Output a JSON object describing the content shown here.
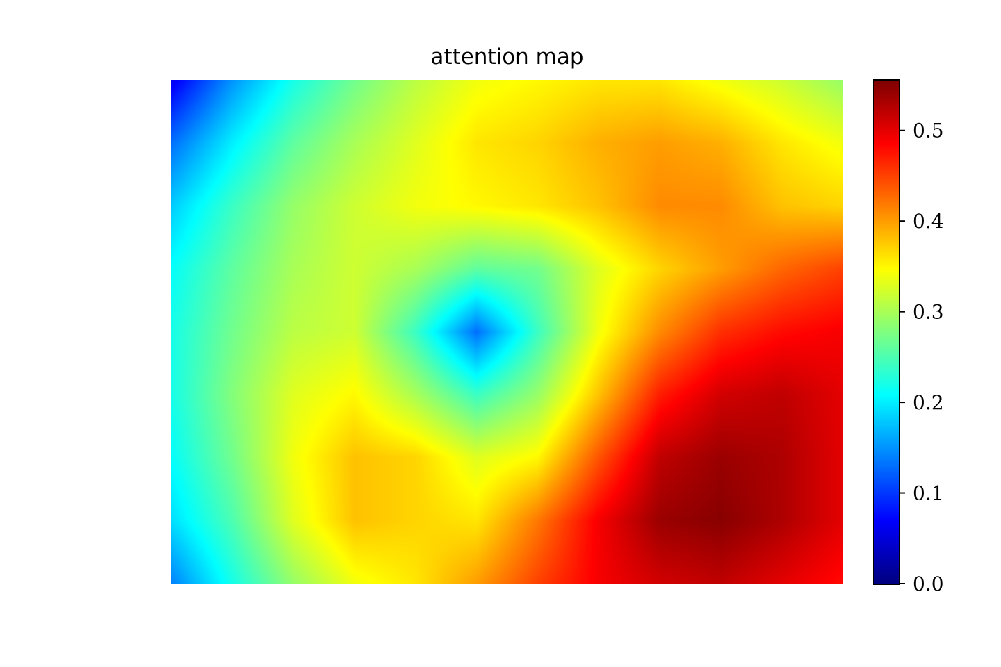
{
  "chart_data": {
    "type": "heatmap",
    "title": "attention map",
    "xlabel": "",
    "ylabel": "",
    "axes_visible": false,
    "colormap": "jet",
    "colorbar": {
      "vmin": 0.0,
      "vmax": 0.555,
      "ticks": [
        0.0,
        0.1,
        0.2,
        0.3,
        0.4,
        0.5
      ],
      "tick_labels": [
        "0.0",
        "0.1",
        "0.2",
        "0.3",
        "0.4",
        "0.5"
      ],
      "position": "right"
    },
    "grid_shape": [
      9,
      12
    ],
    "values": [
      [
        0.06,
        0.15,
        0.22,
        0.27,
        0.31,
        0.34,
        0.35,
        0.36,
        0.36,
        0.34,
        0.32,
        0.29
      ],
      [
        0.13,
        0.2,
        0.26,
        0.3,
        0.33,
        0.36,
        0.37,
        0.39,
        0.4,
        0.39,
        0.36,
        0.34
      ],
      [
        0.18,
        0.24,
        0.29,
        0.32,
        0.34,
        0.35,
        0.36,
        0.38,
        0.41,
        0.41,
        0.38,
        0.37
      ],
      [
        0.21,
        0.26,
        0.3,
        0.32,
        0.3,
        0.26,
        0.27,
        0.33,
        0.37,
        0.4,
        0.43,
        0.45
      ],
      [
        0.22,
        0.27,
        0.31,
        0.32,
        0.24,
        0.13,
        0.24,
        0.34,
        0.41,
        0.46,
        0.48,
        0.49
      ],
      [
        0.22,
        0.28,
        0.33,
        0.35,
        0.3,
        0.24,
        0.29,
        0.38,
        0.47,
        0.51,
        0.52,
        0.5
      ],
      [
        0.21,
        0.27,
        0.34,
        0.38,
        0.37,
        0.33,
        0.35,
        0.44,
        0.52,
        0.54,
        0.53,
        0.5
      ],
      [
        0.19,
        0.25,
        0.33,
        0.38,
        0.37,
        0.36,
        0.42,
        0.49,
        0.54,
        0.55,
        0.53,
        0.5
      ],
      [
        0.14,
        0.22,
        0.29,
        0.34,
        0.36,
        0.4,
        0.45,
        0.49,
        0.51,
        0.52,
        0.5,
        0.48
      ]
    ]
  }
}
